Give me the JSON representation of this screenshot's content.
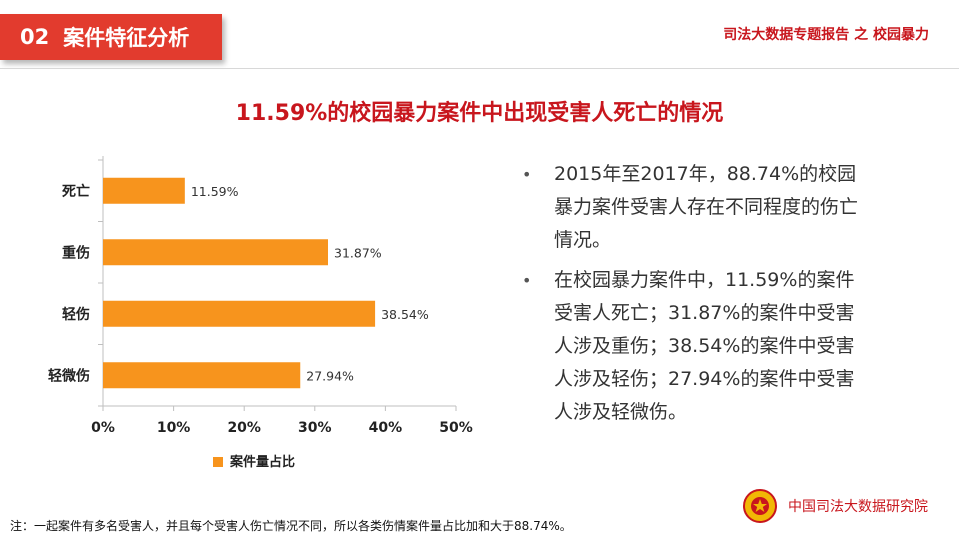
{
  "header": {
    "section_number": "02",
    "section_title": "案件特征分析",
    "report_title": "司法大数据专题报告 之 校园暴力"
  },
  "headline": "11.59%的校园暴力案件中出现受害人死亡的情况",
  "chart_data": {
    "type": "bar",
    "orientation": "horizontal",
    "categories": [
      "死亡",
      "重伤",
      "轻伤",
      "轻微伤"
    ],
    "series": [
      {
        "name": "案件量占比",
        "values": [
          11.59,
          31.87,
          38.54,
          27.94
        ],
        "labels": [
          "11.59%",
          "31.87%",
          "38.54%",
          "27.94%"
        ],
        "color": "#f7941d"
      }
    ],
    "xlim": [
      0,
      50
    ],
    "xticks": [
      "0%",
      "10%",
      "20%",
      "30%",
      "40%",
      "50%"
    ],
    "grid": false,
    "legend": "bottom"
  },
  "bullets": [
    "2015年至2017年，88.74%的校园暴力案件受害人存在不同程度的伤亡情况。",
    "在校园暴力案件中，11.59%的案件受害人死亡；31.87%的案件中受害人涉及重伤；38.54%的案件中受害人涉及轻伤；27.94%的案件中受害人涉及轻微伤。"
  ],
  "bullet_marker": "•",
  "footnote": "注：一起案件有多名受害人，并且每个受害人伤亡情况不同，所以各类伤情案件量占比加和大于88.74%。",
  "footer": {
    "emblem_icon": "court-emblem-icon",
    "institute": "中国司法大数据研究院"
  },
  "colors": {
    "accent_red": "#c8161d",
    "tab_red": "#e23b2e",
    "bar_orange": "#f7941d"
  }
}
